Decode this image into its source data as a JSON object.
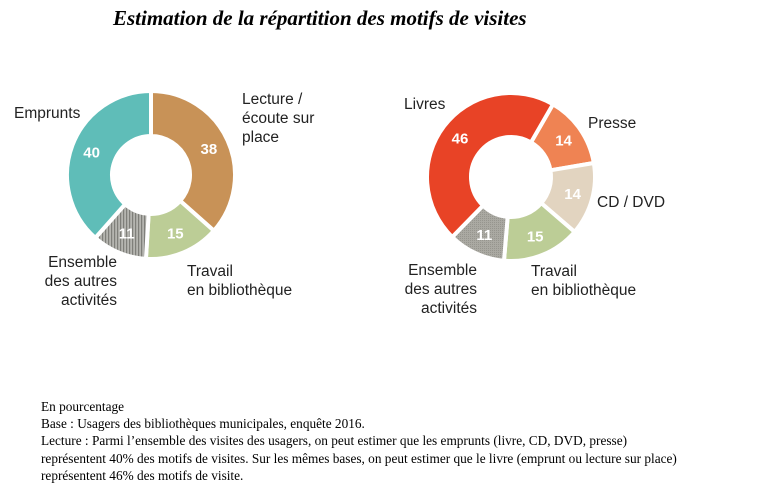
{
  "title": "Estimation de la répartition des motifs de visites",
  "chart_data": [
    {
      "type": "pie",
      "variant": "donut",
      "name": "Motifs de visites",
      "start_angle_deg": 0,
      "direction": "clockwise",
      "slices": [
        {
          "label_lines": [
            "Lecture /",
            "écoute sur",
            "place"
          ],
          "value": 38,
          "color": "#c89257"
        },
        {
          "label_lines": [
            "Travail",
            "en bibliothèque"
          ],
          "value": 15,
          "color": "#bccd96"
        },
        {
          "label_lines": [
            "Ensemble",
            "des autres",
            "activités"
          ],
          "value": 11,
          "color": "#9a9a94",
          "pattern": "vertical-stripes"
        },
        {
          "label_lines": [
            "Emprunts"
          ],
          "value": 40,
          "color": "#5fbdb8"
        }
      ]
    },
    {
      "type": "pie",
      "variant": "donut",
      "name": "Motifs par support",
      "start_angle_deg": 30,
      "direction": "clockwise",
      "slices": [
        {
          "label_lines": [
            "Presse"
          ],
          "value": 14,
          "color": "#ef8353"
        },
        {
          "label_lines": [
            "CD / DVD"
          ],
          "value": 14,
          "color": "#e2d4c0"
        },
        {
          "label_lines": [
            "Travail",
            "en bibliothèque"
          ],
          "value": 15,
          "color": "#bccd96"
        },
        {
          "label_lines": [
            "Ensemble",
            "des autres",
            "activités"
          ],
          "value": 11,
          "color": "#a7a69f",
          "pattern": "dots"
        },
        {
          "label_lines": [
            "Livres"
          ],
          "value": 46,
          "color": "#e84326"
        }
      ]
    }
  ],
  "notes": [
    "En pourcentage",
    "Base : Usagers des bibliothèques municipales, enquête 2016.",
    "Lecture : Parmi l’ensemble des visites des usagers, on peut estimer que les emprunts (livre, CD, DVD, presse)",
    "représentent 40% des motifs de visites. Sur les mêmes bases, on peut estimer que le livre (emprunt ou lecture sur place)",
    "représentent 46% des motifs de visite."
  ]
}
